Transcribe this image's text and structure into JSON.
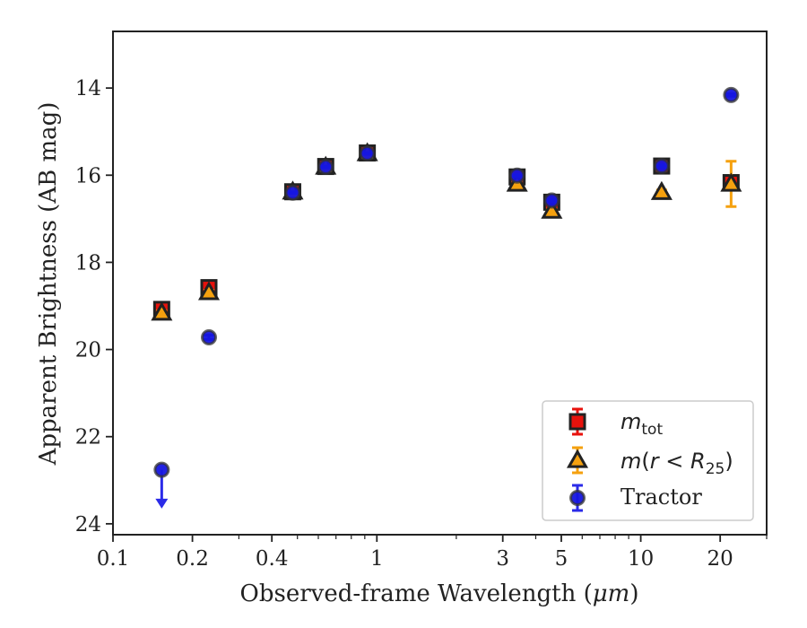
{
  "chart_data": {
    "type": "scatter",
    "xlabel_prefix": "Observed-frame Wavelength (",
    "xlabel_unit": "μm",
    "xlabel_suffix": ")",
    "ylabel": "Apparent Brightness (AB mag)",
    "xscale": "log",
    "xlim": [
      0.1,
      30
    ],
    "ylim": [
      24.25,
      12.7
    ],
    "y_inverted": true,
    "grid": false,
    "legend_position": "lower-right",
    "x_ticks": [
      {
        "value": 0.1,
        "label": "0.1"
      },
      {
        "value": 0.2,
        "label": "0.2"
      },
      {
        "value": 0.4,
        "label": "0.4"
      },
      {
        "value": 1,
        "label": "1"
      },
      {
        "value": 3,
        "label": "3"
      },
      {
        "value": 5,
        "label": "5"
      },
      {
        "value": 10,
        "label": "10"
      },
      {
        "value": 20,
        "label": "20"
      }
    ],
    "x_minor_ticks": [
      0.3,
      0.5,
      0.6,
      0.7,
      0.8,
      0.9,
      2,
      4,
      6,
      7,
      8,
      9,
      30
    ],
    "y_ticks": [
      {
        "value": 14,
        "label": "14"
      },
      {
        "value": 16,
        "label": "16"
      },
      {
        "value": 18,
        "label": "18"
      },
      {
        "value": 20,
        "label": "20"
      },
      {
        "value": 22,
        "label": "22"
      },
      {
        "value": 24,
        "label": "24"
      }
    ],
    "series": [
      {
        "key": "m_tot",
        "legend_main": "m",
        "legend_sub": "tot",
        "marker": "square",
        "color": "#e8120c",
        "errcolor": "#e8120c",
        "points": [
          {
            "x": 0.153,
            "y": 19.08,
            "err": 0.09
          },
          {
            "x": 0.231,
            "y": 18.58,
            "err": 0.07
          },
          {
            "x": 0.48,
            "y": 16.38,
            "err": 0.02
          },
          {
            "x": 0.64,
            "y": 15.8,
            "err": 0.02
          },
          {
            "x": 0.92,
            "y": 15.49,
            "err": 0.02
          },
          {
            "x": 3.4,
            "y": 16.04,
            "err": 0.03
          },
          {
            "x": 4.6,
            "y": 16.62,
            "err": 0.04
          },
          {
            "x": 12.0,
            "y": 15.79,
            "err": 0.04
          },
          {
            "x": 22.0,
            "y": 16.17,
            "err": 0.06
          }
        ]
      },
      {
        "key": "m_r25",
        "legend_main": "m",
        "legend_paren_open": "(",
        "legend_var": "r",
        "legend_lt": " < ",
        "legend_var2": "R",
        "legend_sub": "25",
        "legend_paren_close": ")",
        "marker": "triangle",
        "color": "#f5a10f",
        "errcolor": "#f5a10f",
        "points": [
          {
            "x": 0.153,
            "y": 19.16,
            "err": 0.05
          },
          {
            "x": 0.231,
            "y": 18.69,
            "err": 0.05
          },
          {
            "x": 0.48,
            "y": 16.38,
            "err": 0.02
          },
          {
            "x": 0.64,
            "y": 15.81,
            "err": 0.02
          },
          {
            "x": 0.92,
            "y": 15.5,
            "err": 0.02
          },
          {
            "x": 3.4,
            "y": 16.2,
            "err": 0.03
          },
          {
            "x": 4.6,
            "y": 16.82,
            "err": 0.04
          },
          {
            "x": 12.0,
            "y": 16.39,
            "err": 0.05
          },
          {
            "x": 22.0,
            "y": 16.2,
            "err": 0.52
          }
        ]
      },
      {
        "key": "tractor",
        "legend_main": "Tractor",
        "marker": "circle",
        "color": "#1515e0",
        "errcolor": "#2b2be8",
        "points": [
          {
            "x": 0.153,
            "y": 22.76,
            "err": 0,
            "upper_limit": true
          },
          {
            "x": 0.231,
            "y": 19.72,
            "err": 0.05
          },
          {
            "x": 0.48,
            "y": 16.4,
            "err": 0.02
          },
          {
            "x": 0.64,
            "y": 15.81,
            "err": 0.02
          },
          {
            "x": 0.92,
            "y": 15.5,
            "err": 0.02
          },
          {
            "x": 3.4,
            "y": 16.01,
            "err": 0.02
          },
          {
            "x": 4.6,
            "y": 16.58,
            "err": 0.03
          },
          {
            "x": 12.0,
            "y": 15.79,
            "err": 0.03
          },
          {
            "x": 22.0,
            "y": 14.16,
            "err": 0.03
          }
        ]
      }
    ]
  }
}
